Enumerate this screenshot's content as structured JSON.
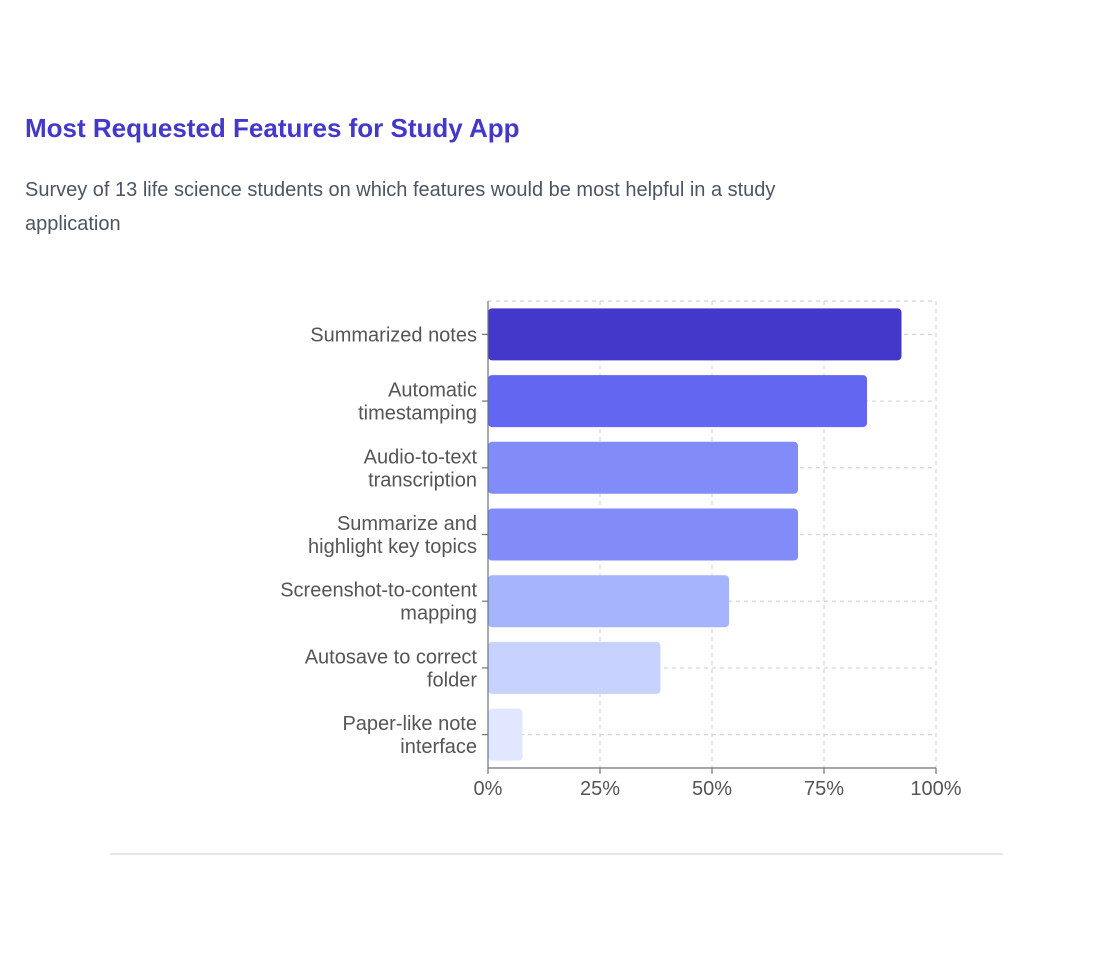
{
  "title": "Most Requested Features for Study App",
  "subtitle": "Survey of 13 life science students on which features would be most helpful in a study application",
  "chart_data": {
    "type": "bar",
    "orientation": "horizontal",
    "categories": [
      "Summarized notes",
      "Automatic timestamping",
      "Audio-to-text transcription",
      "Summarize and highlight key topics",
      "Screenshot-to-content mapping",
      "Autosave to correct folder",
      "Paper-like note interface"
    ],
    "category_lines": [
      [
        "Summarized notes"
      ],
      [
        "Automatic",
        "timestamping"
      ],
      [
        "Audio-to-text",
        "transcription"
      ],
      [
        "Summarize and",
        "highlight key topics"
      ],
      [
        "Screenshot-to-content",
        "mapping"
      ],
      [
        "Autosave to correct",
        "folder"
      ],
      [
        "Paper-like note",
        "interface"
      ]
    ],
    "values": [
      92.3,
      84.6,
      69.2,
      69.2,
      53.8,
      38.5,
      7.7
    ],
    "colors": [
      "#4338ca",
      "#6366f1",
      "#818cf8",
      "#818cf8",
      "#a5b4fc",
      "#c7d2fe",
      "#e0e7ff"
    ],
    "xlim": [
      0,
      100
    ],
    "xticks": [
      "0%",
      "25%",
      "50%",
      "75%",
      "100%"
    ],
    "grid": true,
    "xlabel": "",
    "ylabel": ""
  }
}
